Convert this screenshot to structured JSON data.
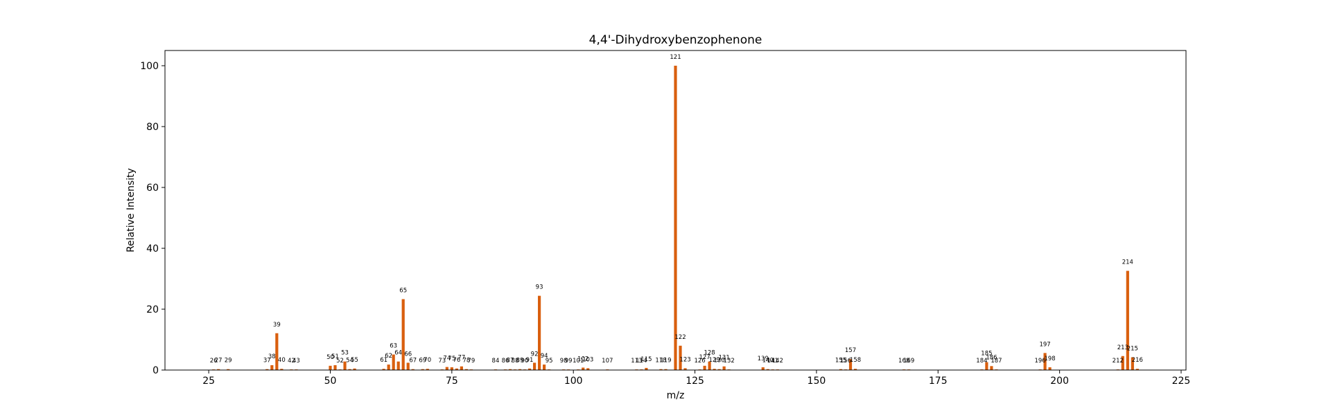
{
  "chart_data": {
    "type": "bar",
    "title": "4,4'-Dihydroxybenzophenone",
    "xlabel": "m/z",
    "ylabel": "Relative Intensity",
    "xlim": [
      16,
      226
    ],
    "ylim": [
      0,
      105
    ],
    "xticks": [
      25,
      50,
      75,
      100,
      125,
      150,
      175,
      200,
      225
    ],
    "yticks": [
      0,
      20,
      40,
      60,
      80,
      100
    ],
    "grid": false,
    "bar_color": "#d95f0e",
    "peaks": [
      {
        "mz": 26,
        "intensity": 0.2
      },
      {
        "mz": 27,
        "intensity": 0.3
      },
      {
        "mz": 29,
        "intensity": 0.3
      },
      {
        "mz": 37,
        "intensity": 0.3
      },
      {
        "mz": 38,
        "intensity": 1.6
      },
      {
        "mz": 39,
        "intensity": 12.1
      },
      {
        "mz": 40,
        "intensity": 0.4
      },
      {
        "mz": 42,
        "intensity": 0.2
      },
      {
        "mz": 43,
        "intensity": 0.2
      },
      {
        "mz": 50,
        "intensity": 1.4
      },
      {
        "mz": 51,
        "intensity": 1.6
      },
      {
        "mz": 52,
        "intensity": 0.2
      },
      {
        "mz": 53,
        "intensity": 2.8
      },
      {
        "mz": 54,
        "intensity": 0.3
      },
      {
        "mz": 55,
        "intensity": 0.5
      },
      {
        "mz": 61,
        "intensity": 0.4
      },
      {
        "mz": 62,
        "intensity": 1.8
      },
      {
        "mz": 63,
        "intensity": 5.1
      },
      {
        "mz": 64,
        "intensity": 2.8
      },
      {
        "mz": 65,
        "intensity": 23.3
      },
      {
        "mz": 66,
        "intensity": 2.4
      },
      {
        "mz": 67,
        "intensity": 0.3
      },
      {
        "mz": 69,
        "intensity": 0.3
      },
      {
        "mz": 70,
        "intensity": 0.4
      },
      {
        "mz": 73,
        "intensity": 0.2
      },
      {
        "mz": 74,
        "intensity": 1.0
      },
      {
        "mz": 75,
        "intensity": 0.9
      },
      {
        "mz": 76,
        "intensity": 0.5
      },
      {
        "mz": 77,
        "intensity": 1.2
      },
      {
        "mz": 78,
        "intensity": 0.3
      },
      {
        "mz": 79,
        "intensity": 0.2
      },
      {
        "mz": 84,
        "intensity": 0.2
      },
      {
        "mz": 86,
        "intensity": 0.2
      },
      {
        "mz": 87,
        "intensity": 0.3
      },
      {
        "mz": 88,
        "intensity": 0.2
      },
      {
        "mz": 89,
        "intensity": 0.3
      },
      {
        "mz": 90,
        "intensity": 0.2
      },
      {
        "mz": 91,
        "intensity": 0.5
      },
      {
        "mz": 92,
        "intensity": 2.4
      },
      {
        "mz": 93,
        "intensity": 24.4
      },
      {
        "mz": 94,
        "intensity": 1.8
      },
      {
        "mz": 95,
        "intensity": 0.2
      },
      {
        "mz": 98,
        "intensity": 0.2
      },
      {
        "mz": 99,
        "intensity": 0.2
      },
      {
        "mz": 101,
        "intensity": 0.2
      },
      {
        "mz": 102,
        "intensity": 0.8
      },
      {
        "mz": 103,
        "intensity": 0.6
      },
      {
        "mz": 107,
        "intensity": 0.2
      },
      {
        "mz": 113,
        "intensity": 0.2
      },
      {
        "mz": 114,
        "intensity": 0.2
      },
      {
        "mz": 115,
        "intensity": 0.7
      },
      {
        "mz": 118,
        "intensity": 0.3
      },
      {
        "mz": 119,
        "intensity": 0.3
      },
      {
        "mz": 121,
        "intensity": 100
      },
      {
        "mz": 122,
        "intensity": 8.0
      },
      {
        "mz": 123,
        "intensity": 0.6
      },
      {
        "mz": 126,
        "intensity": 0.2
      },
      {
        "mz": 127,
        "intensity": 1.4
      },
      {
        "mz": 128,
        "intensity": 2.8
      },
      {
        "mz": 129,
        "intensity": 0.4
      },
      {
        "mz": 130,
        "intensity": 0.3
      },
      {
        "mz": 131,
        "intensity": 1.2
      },
      {
        "mz": 132,
        "intensity": 0.2
      },
      {
        "mz": 139,
        "intensity": 0.9
      },
      {
        "mz": 140,
        "intensity": 0.3
      },
      {
        "mz": 141,
        "intensity": 0.2
      },
      {
        "mz": 142,
        "intensity": 0.2
      },
      {
        "mz": 155,
        "intensity": 0.3
      },
      {
        "mz": 156,
        "intensity": 0.2
      },
      {
        "mz": 157,
        "intensity": 3.6
      },
      {
        "mz": 158,
        "intensity": 0.4
      },
      {
        "mz": 168,
        "intensity": 0.2
      },
      {
        "mz": 169,
        "intensity": 0.2
      },
      {
        "mz": 184,
        "intensity": 0.2
      },
      {
        "mz": 185,
        "intensity": 2.6
      },
      {
        "mz": 186,
        "intensity": 1.3
      },
      {
        "mz": 187,
        "intensity": 0.2
      },
      {
        "mz": 196,
        "intensity": 0.2
      },
      {
        "mz": 197,
        "intensity": 5.6
      },
      {
        "mz": 198,
        "intensity": 0.9
      },
      {
        "mz": 212,
        "intensity": 0.2
      },
      {
        "mz": 213,
        "intensity": 4.6
      },
      {
        "mz": 214,
        "intensity": 32.6
      },
      {
        "mz": 215,
        "intensity": 4.2
      },
      {
        "mz": 216,
        "intensity": 0.4
      }
    ]
  }
}
